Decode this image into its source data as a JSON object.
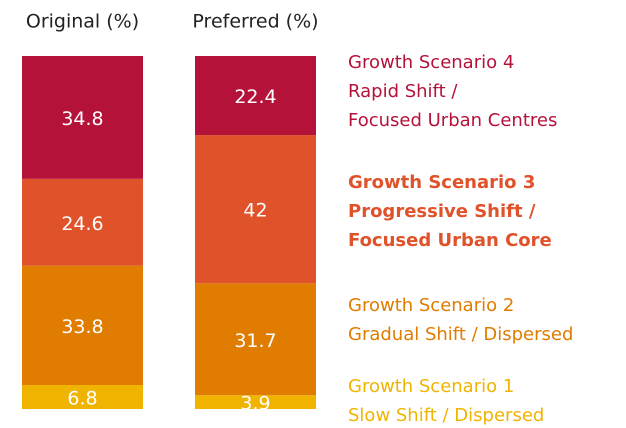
{
  "chart_data": {
    "type": "stacked_bar",
    "categories": [
      "Original (%)",
      "Preferred (%)"
    ],
    "ylim": [
      0,
      100
    ],
    "series": [
      {
        "name": "Growth Scenario 1\nSlow Shift / Dispersed",
        "color": "#f0b400",
        "values": [
          6.8,
          3.9
        ]
      },
      {
        "name": "Growth Scenario 2\nGradual Shift / Dispersed",
        "color": "#e07c00",
        "values": [
          33.8,
          31.7
        ]
      },
      {
        "name": "Growth Scenario 3\nProgressive Shift /\nFocused Urban Core",
        "color": "#e0522a",
        "values": [
          24.6,
          42
        ],
        "bold": true
      },
      {
        "name": "Growth Scenario 4\nRapid Shift /\nFocused Urban Centres",
        "color": "#b5123a",
        "values": [
          34.8,
          22.4
        ]
      }
    ]
  }
}
